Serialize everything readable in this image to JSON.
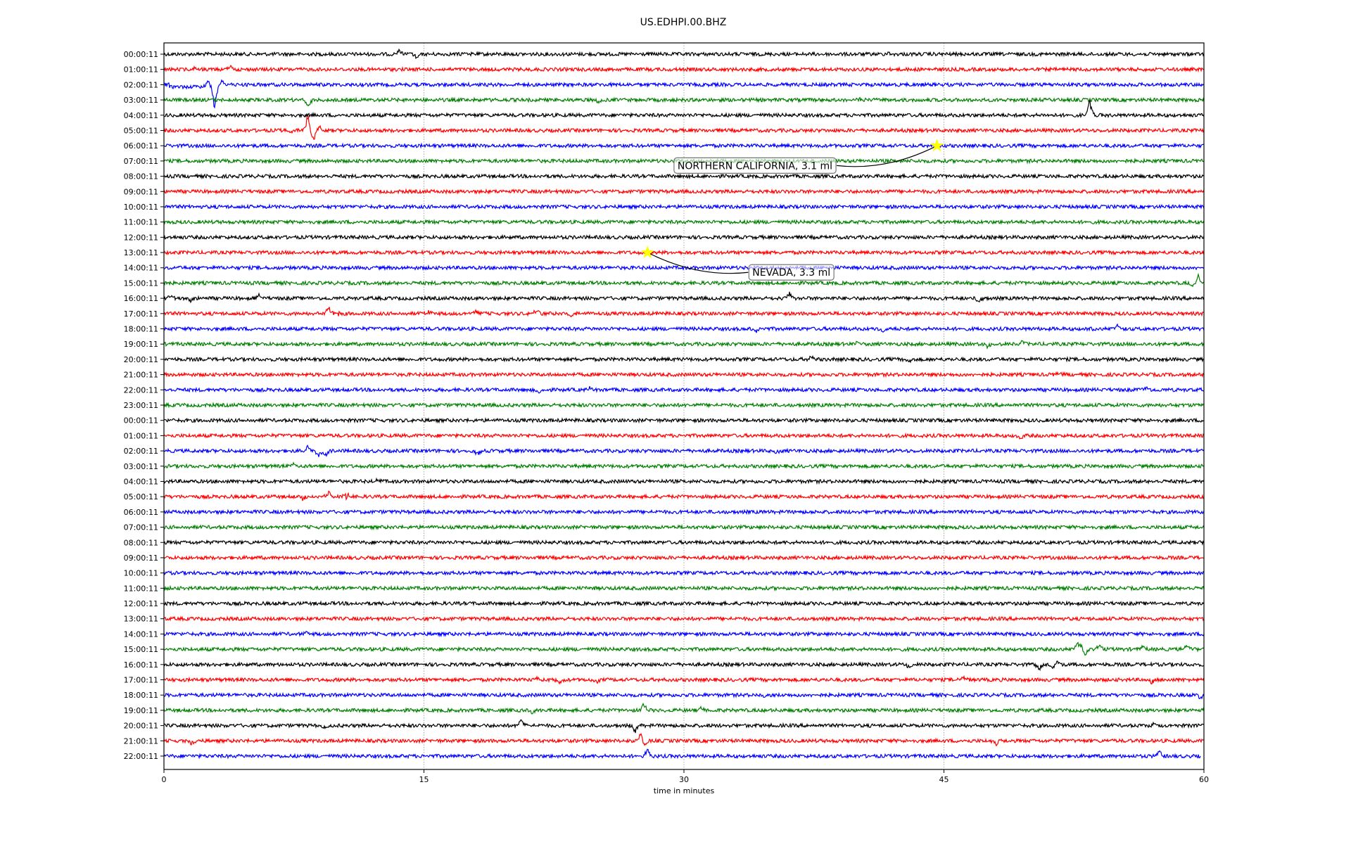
{
  "chart_data": {
    "type": "line",
    "title": "US.EDHPI.00.BHZ",
    "xlabel": "time in minutes",
    "ylabel": "",
    "xlim": [
      0,
      60
    ],
    "xticks": [
      "0",
      "15",
      "30",
      "45",
      "60"
    ],
    "xtick_values": [
      0,
      15,
      30,
      45,
      60
    ],
    "grid": "vertical dotted at x ticks",
    "row_labels": [
      "00:00:11",
      "01:00:11",
      "02:00:11",
      "03:00:11",
      "04:00:11",
      "05:00:11",
      "06:00:11",
      "07:00:11",
      "08:00:11",
      "09:00:11",
      "10:00:11",
      "11:00:11",
      "12:00:11",
      "13:00:11",
      "14:00:11",
      "15:00:11",
      "16:00:11",
      "17:00:11",
      "18:00:11",
      "19:00:11",
      "20:00:11",
      "21:00:11",
      "22:00:11",
      "23:00:11",
      "00:00:11",
      "01:00:11",
      "02:00:11",
      "03:00:11",
      "04:00:11",
      "05:00:11",
      "06:00:11",
      "07:00:11",
      "08:00:11",
      "09:00:11",
      "10:00:11",
      "11:00:11",
      "12:00:11",
      "13:00:11",
      "14:00:11",
      "15:00:11",
      "16:00:11",
      "17:00:11",
      "18:00:11",
      "19:00:11",
      "20:00:11",
      "21:00:11",
      "22:00:11"
    ],
    "trace_colors": [
      "#000000",
      "#ff0000",
      "#0000ff",
      "#008000"
    ],
    "last_trace_end_minute": 59.8,
    "events": [
      [
        0,
        13.6,
        6
      ],
      [
        0,
        14.6,
        -8
      ],
      [
        0,
        17.4,
        5
      ],
      [
        0,
        41.8,
        3
      ],
      [
        1,
        3.8,
        5
      ],
      [
        1,
        1.8,
        3
      ],
      [
        2,
        2.5,
        8
      ],
      [
        2,
        2.9,
        -10
      ],
      [
        2,
        3.3,
        8
      ],
      [
        2,
        2.95,
        -40
      ],
      [
        3,
        8.3,
        -14
      ],
      [
        3,
        25.1,
        -4
      ],
      [
        3,
        40,
        3
      ],
      [
        4,
        53.4,
        25
      ],
      [
        5,
        8.3,
        25
      ],
      [
        5,
        7.3,
        -5
      ],
      [
        5,
        9,
        6
      ],
      [
        5,
        8.6,
        -18
      ],
      [
        15,
        59.7,
        15
      ],
      [
        15,
        59.4,
        -6
      ],
      [
        16,
        0.4,
        5
      ],
      [
        16,
        1.5,
        -5
      ],
      [
        16,
        5.5,
        6
      ],
      [
        16,
        36.1,
        8
      ],
      [
        16,
        47,
        -6
      ],
      [
        17,
        10,
        30
      ],
      [
        17,
        10,
        -30
      ],
      [
        17,
        9.5,
        10
      ],
      [
        17,
        15.3,
        15
      ],
      [
        17,
        15.3,
        -10
      ],
      [
        17,
        18,
        6
      ],
      [
        17,
        21.5,
        8
      ],
      [
        17,
        23.5,
        -5
      ],
      [
        18,
        53.4,
        10
      ],
      [
        18,
        53.4,
        -10
      ],
      [
        18,
        55,
        10
      ],
      [
        18,
        34.1,
        -6
      ],
      [
        18,
        41.5,
        -5
      ],
      [
        19,
        47.5,
        -5
      ],
      [
        19,
        49.5,
        5
      ],
      [
        19,
        40,
        4
      ],
      [
        20,
        37.4,
        6
      ],
      [
        20,
        43,
        -6
      ],
      [
        21,
        51.7,
        4
      ],
      [
        22,
        24.6,
        5
      ],
      [
        22,
        21.7,
        -5
      ],
      [
        22,
        56.7,
        4
      ],
      [
        25,
        49.4,
        -6
      ],
      [
        26,
        8.3,
        8
      ],
      [
        26,
        8.9,
        -9
      ],
      [
        26,
        9.3,
        -10
      ],
      [
        26,
        18.1,
        -7
      ],
      [
        26,
        35.3,
        -4
      ],
      [
        27,
        7.5,
        4
      ],
      [
        28,
        12.3,
        4
      ],
      [
        29,
        10.5,
        22
      ],
      [
        29,
        10.5,
        -18
      ],
      [
        29,
        9.5,
        8
      ],
      [
        29,
        8,
        -5
      ],
      [
        38,
        8.2,
        4
      ],
      [
        39,
        53,
        20
      ],
      [
        39,
        53.1,
        -22
      ],
      [
        39,
        52.7,
        10
      ],
      [
        39,
        54,
        8
      ],
      [
        39,
        59,
        6
      ],
      [
        39,
        56.5,
        5
      ],
      [
        40,
        50.5,
        -8
      ],
      [
        40,
        51.5,
        8
      ],
      [
        40,
        51.3,
        -8
      ],
      [
        40,
        43,
        -5
      ],
      [
        41,
        21.5,
        6
      ],
      [
        41,
        22.8,
        -7
      ],
      [
        41,
        25,
        -6
      ],
      [
        41,
        57,
        -5
      ],
      [
        41,
        46.1,
        5
      ],
      [
        42,
        59.8,
        -5
      ],
      [
        42,
        34.7,
        -4
      ],
      [
        43,
        27.7,
        12
      ],
      [
        43,
        21.2,
        -5
      ],
      [
        43,
        31,
        5
      ],
      [
        44,
        27.2,
        -10
      ],
      [
        44,
        20.6,
        9
      ],
      [
        44,
        9.3,
        -5
      ],
      [
        44,
        57.2,
        6
      ],
      [
        45,
        27.5,
        15
      ],
      [
        45,
        27.7,
        -8
      ],
      [
        45,
        1.6,
        -5
      ],
      [
        45,
        48,
        -6
      ],
      [
        46,
        27.9,
        10
      ],
      [
        46,
        57.4,
        9
      ]
    ],
    "annotations": [
      {
        "text": "NORTHERN CALIFORNIA, 3.1 ml",
        "event_row": 6,
        "event_minute": 44.6,
        "label_minute": 34.1,
        "label_row": 7.3
      },
      {
        "text": "NEVADA, 3.3 ml",
        "event_row": 13,
        "event_minute": 27.9,
        "label_minute": 36.2,
        "label_row": 14.3
      }
    ]
  }
}
